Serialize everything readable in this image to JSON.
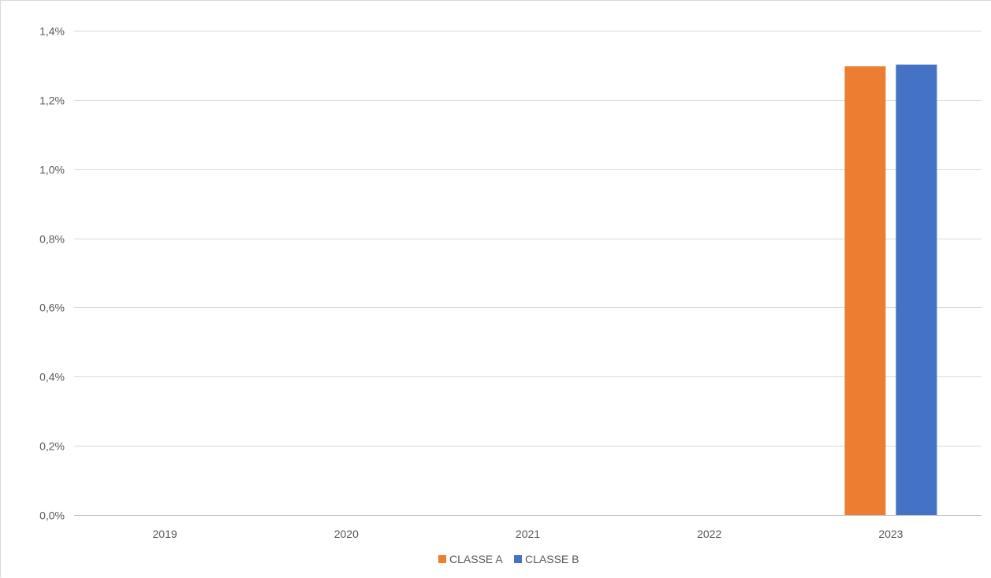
{
  "chart_data": {
    "type": "bar",
    "categories": [
      "2019",
      "2020",
      "2021",
      "2022",
      "2023"
    ],
    "series": [
      {
        "name": "CLASSE A",
        "color": "#ED7D31",
        "values": [
          0,
          0,
          0,
          0,
          1.297
        ]
      },
      {
        "name": "CLASSE B",
        "color": "#4472C4",
        "values": [
          0,
          0,
          0,
          0,
          1.302
        ]
      }
    ],
    "y_ticks": [
      "0,0%",
      "0,2%",
      "0,4%",
      "0,6%",
      "0,8%",
      "1,0%",
      "1,2%",
      "1,4%"
    ],
    "y_tick_values": [
      0,
      0.2,
      0.4,
      0.6,
      0.8,
      1.0,
      1.2,
      1.4
    ],
    "ylim": [
      0,
      1.4
    ],
    "y_unit": "%",
    "grid": true,
    "legend_position": "bottom"
  }
}
